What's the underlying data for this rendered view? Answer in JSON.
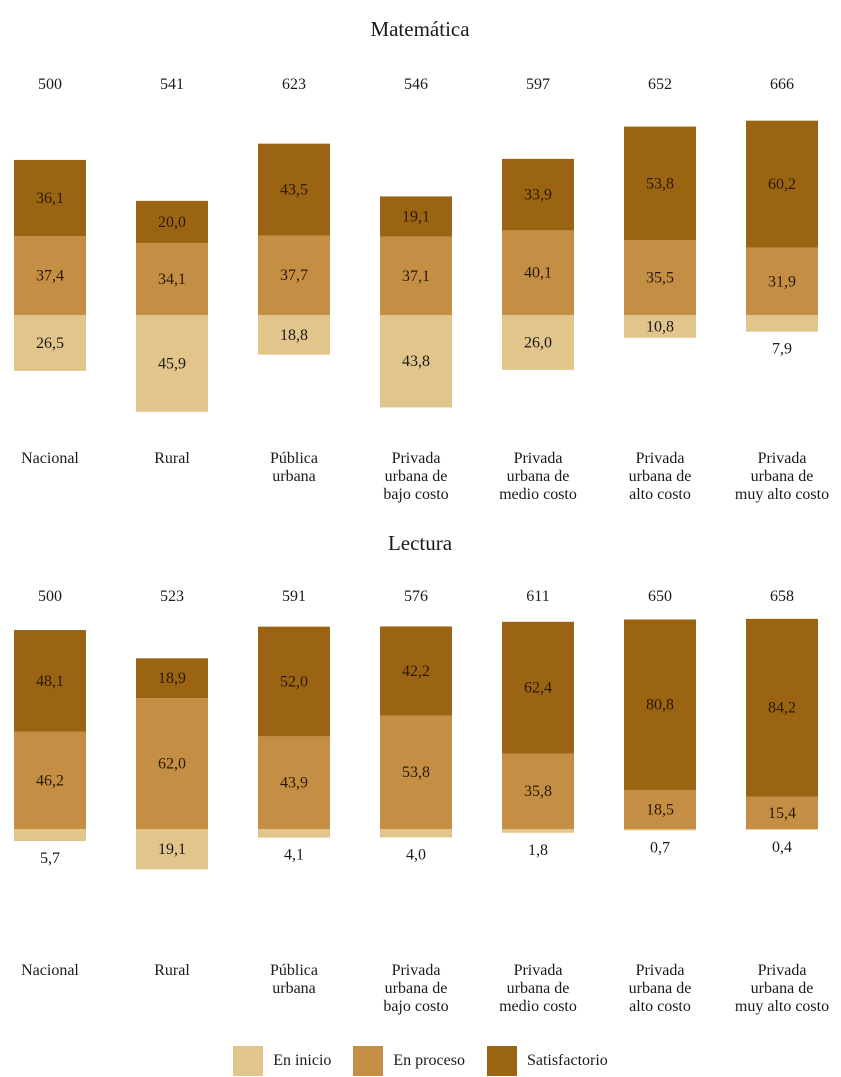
{
  "colors": {
    "en_inicio": "#e2c58b",
    "en_proceso": "#c48f44",
    "satisfactorio": "#9a6413"
  },
  "legend": [
    {
      "label": "En inicio",
      "color": "#e2c58b"
    },
    {
      "label": "En proceso",
      "color": "#c48f44"
    },
    {
      "label": "Satisfactorio",
      "color": "#9a6413"
    }
  ],
  "chart_data": [
    {
      "type": "bar",
      "stacked": true,
      "title": "Matemática",
      "categories": [
        "Nacional",
        "Rural",
        "Pública urbana",
        "Privada urbana de bajo costo",
        "Privada urbana de medio costo",
        "Privada urbana de alto costo",
        "Privada urbana de muy alto costo"
      ],
      "category_lines": [
        [
          "Nacional"
        ],
        [
          "Rural"
        ],
        [
          "Pública",
          "urbana"
        ],
        [
          "Privada",
          "urbana de",
          "bajo costo"
        ],
        [
          "Privada",
          "urbana de",
          "medio costo"
        ],
        [
          "Privada",
          "urbana de",
          "alto costo"
        ],
        [
          "Privada",
          "urbana de",
          "muy alto costo"
        ]
      ],
      "scores": [
        "500",
        "541",
        "623",
        "546",
        "597",
        "652",
        "666"
      ],
      "series": [
        {
          "name": "En inicio",
          "values": [
            26.5,
            45.9,
            18.8,
            43.8,
            26.0,
            10.8,
            7.9
          ],
          "labels": [
            "26,5",
            "45,9",
            "18,8",
            "43,8",
            "26,0",
            "10,8",
            "7,9"
          ]
        },
        {
          "name": "En proceso",
          "values": [
            37.4,
            34.1,
            37.7,
            37.1,
            40.1,
            35.5,
            31.9
          ],
          "labels": [
            "37,4",
            "34,1",
            "37,7",
            "37,1",
            "40,1",
            "35,5",
            "31,9"
          ]
        },
        {
          "name": "Satisfactorio",
          "values": [
            36.1,
            20.0,
            43.5,
            19.1,
            33.9,
            53.8,
            60.2
          ],
          "labels": [
            "36,1",
            "20,0",
            "43,5",
            "19,1",
            "33,9",
            "53,8",
            "60,2"
          ]
        }
      ]
    },
    {
      "type": "bar",
      "stacked": true,
      "title": "Lectura",
      "categories": [
        "Nacional",
        "Rural",
        "Pública urbana",
        "Privada urbana de bajo costo",
        "Privada urbana de medio costo",
        "Privada urbana de alto costo",
        "Privada urbana de muy alto costo"
      ],
      "category_lines": [
        [
          "Nacional"
        ],
        [
          "Rural"
        ],
        [
          "Pública",
          "urbana"
        ],
        [
          "Privada",
          "urbana de",
          "bajo costo"
        ],
        [
          "Privada",
          "urbana de",
          "medio costo"
        ],
        [
          "Privada",
          "urbana de",
          "alto costo"
        ],
        [
          "Privada",
          "urbana de",
          "muy alto costo"
        ]
      ],
      "scores": [
        "500",
        "523",
        "591",
        "576",
        "611",
        "650",
        "658"
      ],
      "series": [
        {
          "name": "En inicio",
          "values": [
            5.7,
            19.1,
            4.1,
            4.0,
            1.8,
            0.7,
            0.4
          ],
          "labels": [
            "5,7",
            "19,1",
            "4,1",
            "4,0",
            "1,8",
            "0,7",
            "0,4"
          ]
        },
        {
          "name": "En proceso",
          "values": [
            46.2,
            62.0,
            43.9,
            53.8,
            35.8,
            18.5,
            15.4
          ],
          "labels": [
            "46,2",
            "62,0",
            "43,9",
            "53,8",
            "35,8",
            "18,5",
            "15,4"
          ]
        },
        {
          "name": "Satisfactorio",
          "values": [
            48.1,
            18.9,
            52.0,
            42.2,
            62.4,
            80.8,
            84.2
          ],
          "labels": [
            "48,1",
            "18,9",
            "52,0",
            "42,2",
            "62,4",
            "80,8",
            "84,2"
          ]
        }
      ]
    }
  ]
}
